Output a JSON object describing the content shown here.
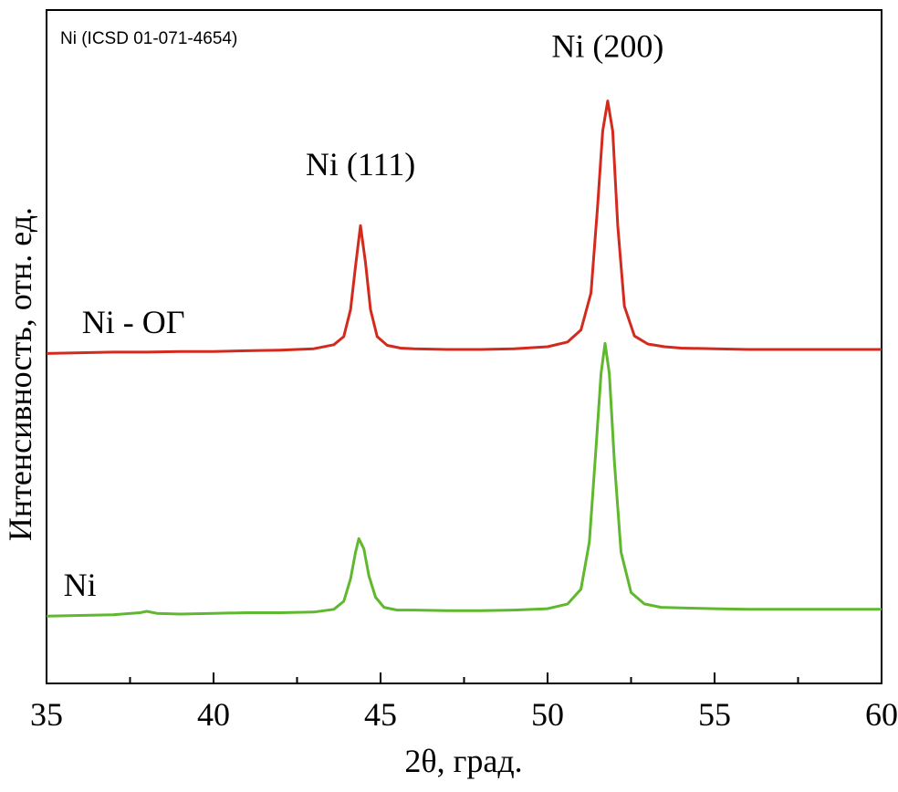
{
  "chart_data": {
    "type": "line",
    "title": "",
    "reference_label": "Ni (ICSD 01-071-4654)",
    "xlabel": "2θ, град.",
    "ylabel": "Интенсивность, отн. ед.",
    "xlim": [
      35,
      60
    ],
    "ylim": [
      0,
      100
    ],
    "x_ticks": [
      35,
      40,
      45,
      50,
      55,
      60
    ],
    "x_tick_labels": [
      "35",
      "40",
      "45",
      "50",
      "55",
      "60"
    ],
    "x_minor_step": 2.5,
    "grid": false,
    "y_ticks": [],
    "series": [
      {
        "name": "Ni - ОГ",
        "color": "#d42a1e",
        "x": [
          35.0,
          36.0,
          37.0,
          38.0,
          39.0,
          40.0,
          41.0,
          42.0,
          43.0,
          43.6,
          43.9,
          44.1,
          44.25,
          44.4,
          44.55,
          44.7,
          44.9,
          45.2,
          45.6,
          46.0,
          47.0,
          48.0,
          49.0,
          50.0,
          50.6,
          51.0,
          51.3,
          51.5,
          51.65,
          51.8,
          51.95,
          52.1,
          52.3,
          52.6,
          53.0,
          53.5,
          54.0,
          55.0,
          56.0,
          57.0,
          58.0,
          59.0,
          60.0
        ],
        "y": [
          49.0,
          49.1,
          49.2,
          49.2,
          49.3,
          49.3,
          49.4,
          49.5,
          49.7,
          50.3,
          51.5,
          55.5,
          62.0,
          68.0,
          62.5,
          55.5,
          51.5,
          50.2,
          49.8,
          49.7,
          49.6,
          49.6,
          49.7,
          50.0,
          50.7,
          52.5,
          58.0,
          71.0,
          82.0,
          86.5,
          82.0,
          68.0,
          56.0,
          51.6,
          50.4,
          50.0,
          49.8,
          49.7,
          49.6,
          49.6,
          49.6,
          49.6,
          49.6
        ]
      },
      {
        "name": "Ni",
        "color": "#5fb82e",
        "x": [
          35.0,
          36.0,
          37.0,
          37.8,
          38.0,
          38.3,
          39.0,
          40.0,
          41.0,
          42.0,
          43.0,
          43.6,
          43.9,
          44.1,
          44.25,
          44.35,
          44.5,
          44.65,
          44.85,
          45.1,
          45.5,
          46.0,
          47.0,
          48.0,
          49.0,
          50.0,
          50.6,
          51.0,
          51.25,
          51.45,
          51.6,
          51.72,
          51.85,
          52.0,
          52.2,
          52.5,
          52.9,
          53.4,
          54.0,
          55.0,
          56.0,
          57.0,
          58.0,
          59.0,
          60.0
        ],
        "y": [
          10.0,
          10.1,
          10.2,
          10.5,
          10.7,
          10.4,
          10.3,
          10.4,
          10.5,
          10.5,
          10.6,
          11.0,
          12.2,
          15.5,
          19.5,
          21.5,
          20.0,
          16.0,
          12.8,
          11.3,
          10.9,
          10.9,
          10.8,
          10.8,
          10.9,
          11.1,
          11.8,
          14.0,
          21.0,
          35.0,
          46.0,
          50.5,
          46.0,
          33.0,
          19.5,
          13.5,
          11.8,
          11.3,
          11.2,
          11.1,
          11.0,
          11.0,
          11.0,
          11.0,
          11.0
        ]
      }
    ],
    "annotations": [
      {
        "id": "ni111",
        "text": "Ni (111)",
        "x": 44.4,
        "y": 75.5
      },
      {
        "id": "ni200",
        "text": "Ni (200)",
        "x": 51.8,
        "y": 93.0
      },
      {
        "id": "label-nio",
        "text": "Ni - ОГ",
        "x": 37.6,
        "y": 52.0
      },
      {
        "id": "label-ni",
        "text": "Ni",
        "x": 36.0,
        "y": 13.0
      }
    ]
  }
}
